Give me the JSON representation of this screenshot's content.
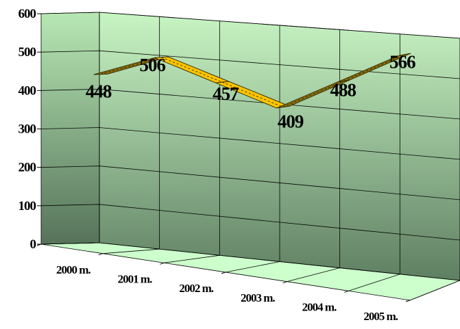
{
  "chart_data": {
    "type": "line",
    "style": "3d-ribbon",
    "title": "",
    "xlabel": "",
    "ylabel": "",
    "categories": [
      "2000 m.",
      "2001 m.",
      "2002 m.",
      "2003 m.",
      "2004 m.",
      "2005 m."
    ],
    "series": [
      {
        "values": [
          448,
          506,
          457,
          409,
          488,
          566
        ]
      }
    ],
    "data_labels": [
      "448",
      "506",
      "457",
      "409",
      "488",
      "566"
    ],
    "y_ticks": [
      "0",
      "100",
      "200",
      "300",
      "400",
      "500",
      "600"
    ],
    "ylim": [
      0,
      600
    ],
    "grid": true,
    "legend": "none",
    "colors": {
      "ribbon_up": "#8a7010",
      "ribbon_down": "#ffc400",
      "wall_top": "#c8f5c4",
      "wall_bottom": "#5f7f62",
      "floor": "#ccffcc",
      "grid": "#000000"
    }
  }
}
